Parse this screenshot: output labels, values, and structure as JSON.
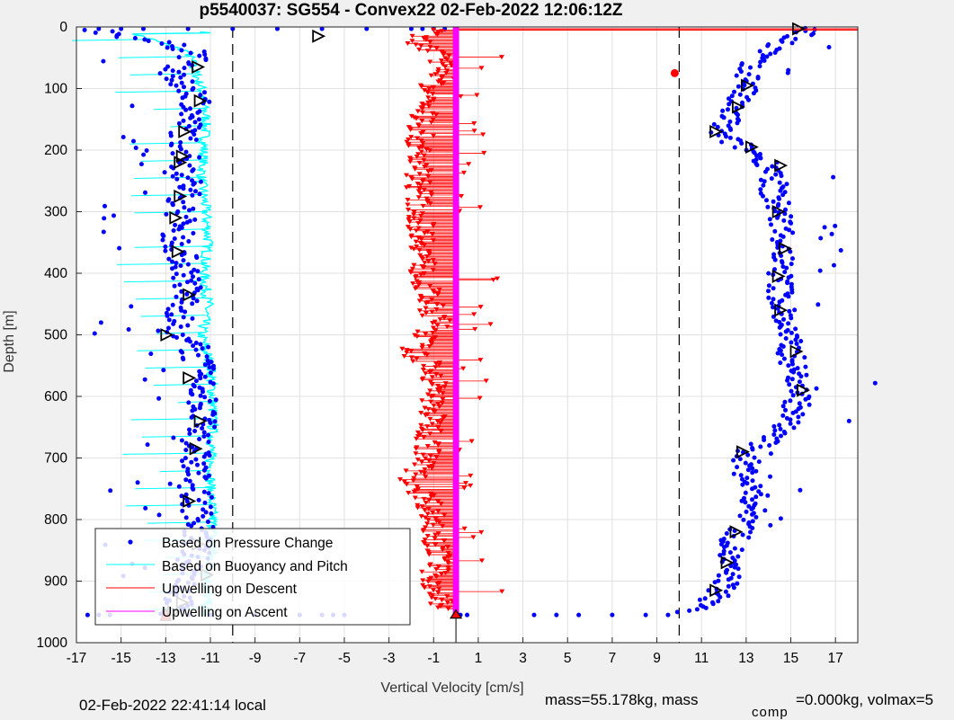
{
  "chart_data": {
    "type": "scatter",
    "title": "p5540037: SG554 - Convex22 02-Feb-2022 12:06:12Z",
    "xlabel": "Vertical Velocity [cm/s]",
    "ylabel": "Depth [m]",
    "xlim": [
      -17,
      18
    ],
    "ylim": [
      1000,
      0
    ],
    "y_reversed": true,
    "grid": true,
    "xticks": [
      -17,
      -15,
      -13,
      -11,
      -9,
      -7,
      -5,
      -3,
      -1,
      1,
      3,
      5,
      7,
      9,
      11,
      13,
      15,
      17
    ],
    "yticks": [
      0,
      100,
      200,
      300,
      400,
      500,
      600,
      700,
      800,
      900,
      1000
    ],
    "reference_lines_x": [
      -10,
      10
    ],
    "colors": {
      "pressure": "#0000ff",
      "buoyancy": "#00ffff",
      "descent": "#ff0000",
      "ascent": "#ff00ff",
      "ref_line": "#000000",
      "background": "#f0f0f0",
      "axes_bg": "#ffffff",
      "grid": "#e0e0e0"
    },
    "series": [
      {
        "name": "Based on Pressure Change",
        "marker": "dot",
        "color": "#0000ff",
        "descent_profile": [
          [
            0,
            -16.5
          ],
          [
            10,
            -15.5
          ],
          [
            20,
            -14
          ],
          [
            40,
            -11.5
          ],
          [
            60,
            -12
          ],
          [
            80,
            -13
          ],
          [
            100,
            -11.8
          ],
          [
            120,
            -11.5
          ],
          [
            150,
            -12
          ],
          [
            200,
            -12.2
          ],
          [
            250,
            -12
          ],
          [
            300,
            -12.3
          ],
          [
            350,
            -12.5
          ],
          [
            400,
            -12
          ],
          [
            450,
            -12.1
          ],
          [
            500,
            -12.8
          ],
          [
            520,
            -11.7
          ],
          [
            560,
            -11.5
          ],
          [
            600,
            -11.3
          ],
          [
            650,
            -11.5
          ],
          [
            700,
            -11.7
          ],
          [
            750,
            -11.7
          ],
          [
            800,
            -11.5
          ],
          [
            850,
            -11.7
          ],
          [
            900,
            -12
          ],
          [
            940,
            -12.5
          ],
          [
            955,
            -13
          ]
        ],
        "ascent_profile": [
          [
            0,
            16
          ],
          [
            30,
            14.5
          ],
          [
            60,
            13
          ],
          [
            90,
            13.2
          ],
          [
            120,
            12.5
          ],
          [
            150,
            12.2
          ],
          [
            175,
            11.7
          ],
          [
            200,
            13.2
          ],
          [
            230,
            14.3
          ],
          [
            270,
            14.2
          ],
          [
            300,
            14.5
          ],
          [
            350,
            14.7
          ],
          [
            400,
            14.5
          ],
          [
            450,
            14.6
          ],
          [
            500,
            14.8
          ],
          [
            530,
            15
          ],
          [
            560,
            15.2
          ],
          [
            590,
            15.5
          ],
          [
            620,
            15.2
          ],
          [
            660,
            14.5
          ],
          [
            690,
            13
          ],
          [
            730,
            13
          ],
          [
            760,
            13.4
          ],
          [
            800,
            13.2
          ],
          [
            830,
            12.5
          ],
          [
            870,
            12.1
          ],
          [
            900,
            12.2
          ],
          [
            930,
            11.5
          ],
          [
            945,
            11
          ],
          [
            952,
            10
          ]
        ],
        "surface_points": [
          -16,
          -15,
          -14,
          -12,
          -10,
          -8,
          -6,
          -4,
          -2,
          -1.5,
          -1,
          -0.5
        ],
        "bottom_points": [
          -16.5,
          -16,
          -15.5,
          -13,
          -12,
          -11,
          -9,
          -7,
          -6,
          -5.5,
          -5,
          0.2,
          0.5,
          3.5,
          4.5,
          5.5,
          7,
          8.5,
          9.5
        ],
        "highlight_point": {
          "depth": 75,
          "velocity": 9.8,
          "color": "#ff0000"
        }
      },
      {
        "name": "Based on Buoyancy and Pitch",
        "marker": "line",
        "color": "#00ffff",
        "descent_profile": [
          [
            10,
            -14.5
          ],
          [
            40,
            -12
          ],
          [
            70,
            -11.7
          ],
          [
            100,
            -11.4
          ],
          [
            150,
            -11.2
          ],
          [
            200,
            -11.3
          ],
          [
            250,
            -11.4
          ],
          [
            300,
            -11.2
          ],
          [
            350,
            -11.1
          ],
          [
            400,
            -11.3
          ],
          [
            450,
            -11.1
          ],
          [
            500,
            -11.4
          ],
          [
            550,
            -11
          ],
          [
            600,
            -10.9
          ],
          [
            650,
            -10.9
          ],
          [
            700,
            -11
          ],
          [
            750,
            -11
          ],
          [
            800,
            -10.9
          ],
          [
            850,
            -10.9
          ],
          [
            900,
            -11.1
          ],
          [
            950,
            -11.2
          ]
        ]
      },
      {
        "name": "Upwelling on Descent",
        "marker": "triangle-down",
        "color": "#ff0000",
        "profile": [
          [
            5,
            -1
          ],
          [
            20,
            -1.8
          ],
          [
            50,
            -0.8
          ],
          [
            80,
            -0.5
          ],
          [
            100,
            -1.2
          ],
          [
            150,
            -1.5
          ],
          [
            200,
            -1.7
          ],
          [
            250,
            -1.6
          ],
          [
            300,
            -1.7
          ],
          [
            350,
            -1.4
          ],
          [
            400,
            -1.5
          ],
          [
            450,
            -1.2
          ],
          [
            480,
            -0.8
          ],
          [
            510,
            -1.5
          ],
          [
            530,
            -2
          ],
          [
            550,
            -1
          ],
          [
            600,
            -1
          ],
          [
            650,
            -1.1
          ],
          [
            700,
            -1.3
          ],
          [
            740,
            -2
          ],
          [
            770,
            -1.2
          ],
          [
            800,
            -1
          ],
          [
            850,
            -0.8
          ],
          [
            900,
            -1
          ],
          [
            940,
            -0.6
          ]
        ]
      },
      {
        "name": "Upwelling on Ascent",
        "marker": "line",
        "color": "#ff00ff",
        "profile": [
          [
            0,
            0
          ],
          [
            955,
            0
          ]
        ]
      }
    ],
    "legend": {
      "location": "bottom-left",
      "entries": [
        "Based on Pressure Change",
        "Based on Buoyancy and Pitch",
        "Upwelling on Descent",
        "Upwelling on Ascent"
      ]
    }
  },
  "footer": {
    "local_time": "02-Feb-2022 22:41:14 local",
    "mass": "mass=55.178kg, mass",
    "comp": "comp",
    "tail": "=0.000kg, volmax=5"
  }
}
